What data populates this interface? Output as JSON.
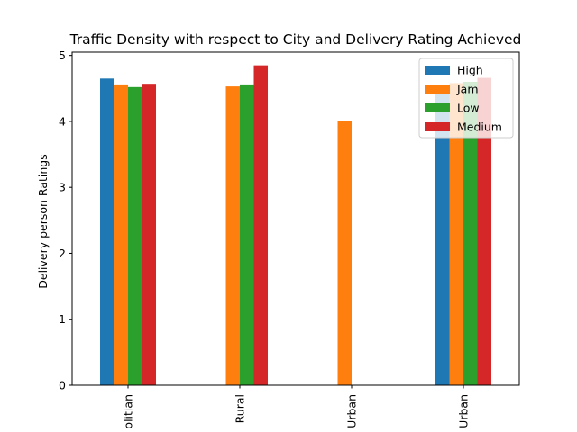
{
  "chart_data": {
    "type": "bar",
    "title": "Traffic Density with respect to City and Delivery Rating Achieved",
    "xlabel": "",
    "ylabel": "Delivery person Ratings",
    "categories": [
      "Metropolitian",
      "Rural",
      "Semi-Urban",
      "Urban"
    ],
    "category_tick_labels": [
      "olitian",
      "Rural",
      "Urban",
      "Urban"
    ],
    "ylim": [
      0,
      5.05
    ],
    "yticks": [
      0,
      1,
      2,
      3,
      4,
      5
    ],
    "grid": false,
    "legend_position": "top-right",
    "series": [
      {
        "name": "High",
        "color": "#1f77b4",
        "values": [
          4.65,
          null,
          null,
          4.55
        ]
      },
      {
        "name": "Jam",
        "color": "#ff7f0e",
        "values": [
          4.56,
          4.53,
          4.0,
          4.58
        ]
      },
      {
        "name": "Low",
        "color": "#2ca02c",
        "values": [
          4.52,
          4.56,
          null,
          4.6
        ]
      },
      {
        "name": "Medium",
        "color": "#d62728",
        "values": [
          4.57,
          4.85,
          null,
          4.66
        ]
      }
    ]
  }
}
